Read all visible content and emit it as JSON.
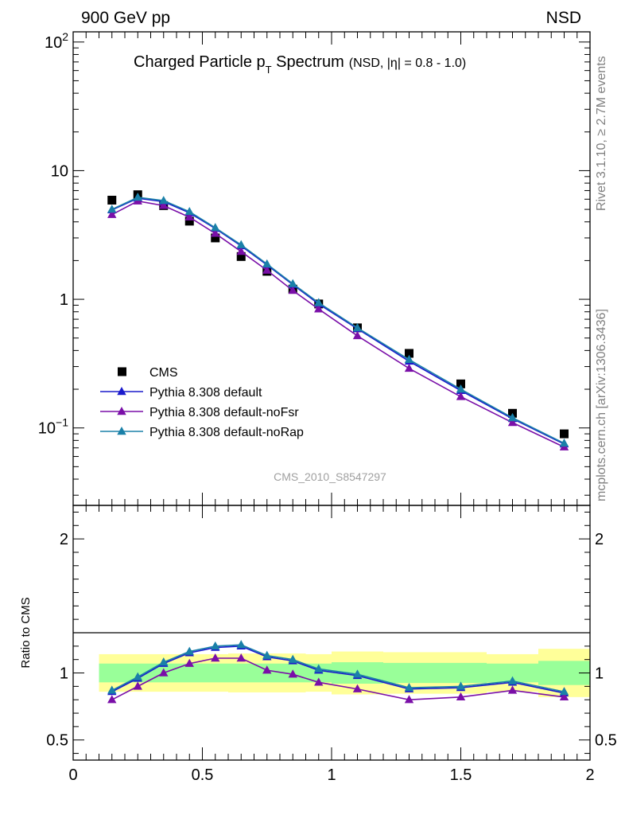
{
  "header": {
    "left": "900 GeV pp",
    "right": "NSD"
  },
  "side": {
    "rivet": "Rivet 3.1.10, ≥ 2.7M events",
    "mcplots": "mcplots.cern.ch [arXiv:1306.3436]"
  },
  "chart_data": [
    {
      "type": "scatter",
      "panel": "main",
      "title": "Charged Particle p",
      "title_sub": "T",
      "title_main_suffix": " Spectrum",
      "title_suffix": "(NSD, |η| = 0.8 - 1.0)",
      "watermark": "CMS_2010_S8547297",
      "yscale": "log",
      "xlim": [
        0,
        2
      ],
      "ylim": [
        0.025,
        120
      ],
      "y_ticks": [
        {
          "label": "10",
          "sup": "2",
          "value": 100
        },
        {
          "label": "10",
          "sup": "",
          "value": 10
        },
        {
          "label": "1",
          "sup": "",
          "value": 1
        },
        {
          "label": "10",
          "sup": "−1",
          "value": 0.1
        }
      ],
      "legend_position": "lower-left",
      "x": [
        0.15,
        0.25,
        0.35,
        0.45,
        0.55,
        0.65,
        0.75,
        0.85,
        0.95,
        1.1,
        1.3,
        1.5,
        1.7,
        1.9
      ],
      "series": [
        {
          "name": "CMS",
          "marker": "square",
          "color": "#000000",
          "values": [
            5.9,
            6.5,
            5.35,
            4.05,
            3.0,
            2.15,
            1.65,
            1.2,
            0.92,
            0.6,
            0.38,
            0.22,
            0.13,
            0.09
          ]
        },
        {
          "name": "Pythia 8.308 default",
          "marker": "triangle",
          "color": "#1a1acc",
          "values": [
            4.95,
            6.1,
            5.75,
            4.7,
            3.55,
            2.6,
            1.85,
            1.3,
            0.92,
            0.59,
            0.33,
            0.195,
            0.118,
            0.075
          ]
        },
        {
          "name": "Pythia 8.308 default-noFsr",
          "marker": "triangle",
          "color": "#7a0fa8",
          "values": [
            4.55,
            5.8,
            5.35,
            4.35,
            3.25,
            2.35,
            1.68,
            1.17,
            0.84,
            0.52,
            0.29,
            0.175,
            0.11,
            0.071
          ]
        },
        {
          "name": "Pythia 8.308 default-noRap",
          "marker": "triangle",
          "color": "#1a80a8",
          "values": [
            5.0,
            6.2,
            5.85,
            4.8,
            3.6,
            2.65,
            1.88,
            1.32,
            0.94,
            0.6,
            0.34,
            0.2,
            0.12,
            0.076
          ]
        }
      ]
    },
    {
      "type": "line",
      "panel": "ratio",
      "ylabel": "Ratio to CMS",
      "xlim": [
        0,
        2
      ],
      "ylim": [
        0.35,
        2.25
      ],
      "x_ticks": [
        {
          "label": "0",
          "value": 0
        },
        {
          "label": "0.5",
          "value": 0.5
        },
        {
          "label": "1",
          "value": 1
        },
        {
          "label": "1.5",
          "value": 1.5
        },
        {
          "label": "2",
          "value": 2
        }
      ],
      "y_ticks": [
        {
          "label": "2",
          "value": 2
        },
        {
          "label": "1",
          "value": 1
        },
        {
          "label": "0.5",
          "value": 0.5
        }
      ],
      "bands": {
        "stat_color": "#99ff99",
        "total_color": "#ffff99",
        "bins": [
          {
            "x0": 0.1,
            "x1": 0.2,
            "stat": [
              0.93,
              1.07
            ],
            "total": [
              0.86,
              1.14
            ]
          },
          {
            "x0": 0.2,
            "x1": 0.3,
            "stat": [
              0.93,
              1.07
            ],
            "total": [
              0.86,
              1.14
            ]
          },
          {
            "x0": 0.3,
            "x1": 0.4,
            "stat": [
              0.93,
              1.07
            ],
            "total": [
              0.86,
              1.14
            ]
          },
          {
            "x0": 0.4,
            "x1": 0.5,
            "stat": [
              0.93,
              1.07
            ],
            "total": [
              0.86,
              1.14
            ]
          },
          {
            "x0": 0.5,
            "x1": 0.6,
            "stat": [
              0.93,
              1.07
            ],
            "total": [
              0.86,
              1.14
            ]
          },
          {
            "x0": 0.6,
            "x1": 0.7,
            "stat": [
              0.93,
              1.07
            ],
            "total": [
              0.855,
              1.145
            ]
          },
          {
            "x0": 0.7,
            "x1": 0.8,
            "stat": [
              0.93,
              1.07
            ],
            "total": [
              0.855,
              1.145
            ]
          },
          {
            "x0": 0.8,
            "x1": 0.9,
            "stat": [
              0.93,
              1.07
            ],
            "total": [
              0.855,
              1.145
            ]
          },
          {
            "x0": 0.9,
            "x1": 1.0,
            "stat": [
              0.93,
              1.07
            ],
            "total": [
              0.86,
              1.14
            ]
          },
          {
            "x0": 1.0,
            "x1": 1.2,
            "stat": [
              0.92,
              1.08
            ],
            "total": [
              0.84,
              1.16
            ]
          },
          {
            "x0": 1.2,
            "x1": 1.4,
            "stat": [
              0.925,
              1.075
            ],
            "total": [
              0.845,
              1.155
            ]
          },
          {
            "x0": 1.4,
            "x1": 1.6,
            "stat": [
              0.925,
              1.075
            ],
            "total": [
              0.845,
              1.155
            ]
          },
          {
            "x0": 1.6,
            "x1": 1.8,
            "stat": [
              0.93,
              1.07
            ],
            "total": [
              0.86,
              1.14
            ]
          },
          {
            "x0": 1.8,
            "x1": 2.0,
            "stat": [
              0.91,
              1.09
            ],
            "total": [
              0.82,
              1.18
            ]
          }
        ]
      },
      "x": [
        0.15,
        0.25,
        0.35,
        0.45,
        0.55,
        0.65,
        0.75,
        0.85,
        0.95,
        1.1,
        1.3,
        1.5,
        1.7,
        1.9
      ],
      "series": [
        {
          "name": "Pythia 8.308 default",
          "color": "#1a1acc",
          "values": [
            0.86,
            0.96,
            1.07,
            1.15,
            1.19,
            1.2,
            1.12,
            1.09,
            1.02,
            0.98,
            0.88,
            0.89,
            0.93,
            0.85
          ]
        },
        {
          "name": "Pythia 8.308 default-noFsr",
          "color": "#7a0fa8",
          "values": [
            0.8,
            0.9,
            1.0,
            1.07,
            1.11,
            1.11,
            1.02,
            0.99,
            0.93,
            0.88,
            0.8,
            0.82,
            0.87,
            0.82
          ]
        },
        {
          "name": "Pythia 8.308 default-noRap",
          "color": "#1a80a8",
          "values": [
            0.87,
            0.97,
            1.08,
            1.16,
            1.2,
            1.21,
            1.13,
            1.1,
            1.03,
            0.99,
            0.89,
            0.9,
            0.94,
            0.86
          ]
        }
      ]
    }
  ]
}
